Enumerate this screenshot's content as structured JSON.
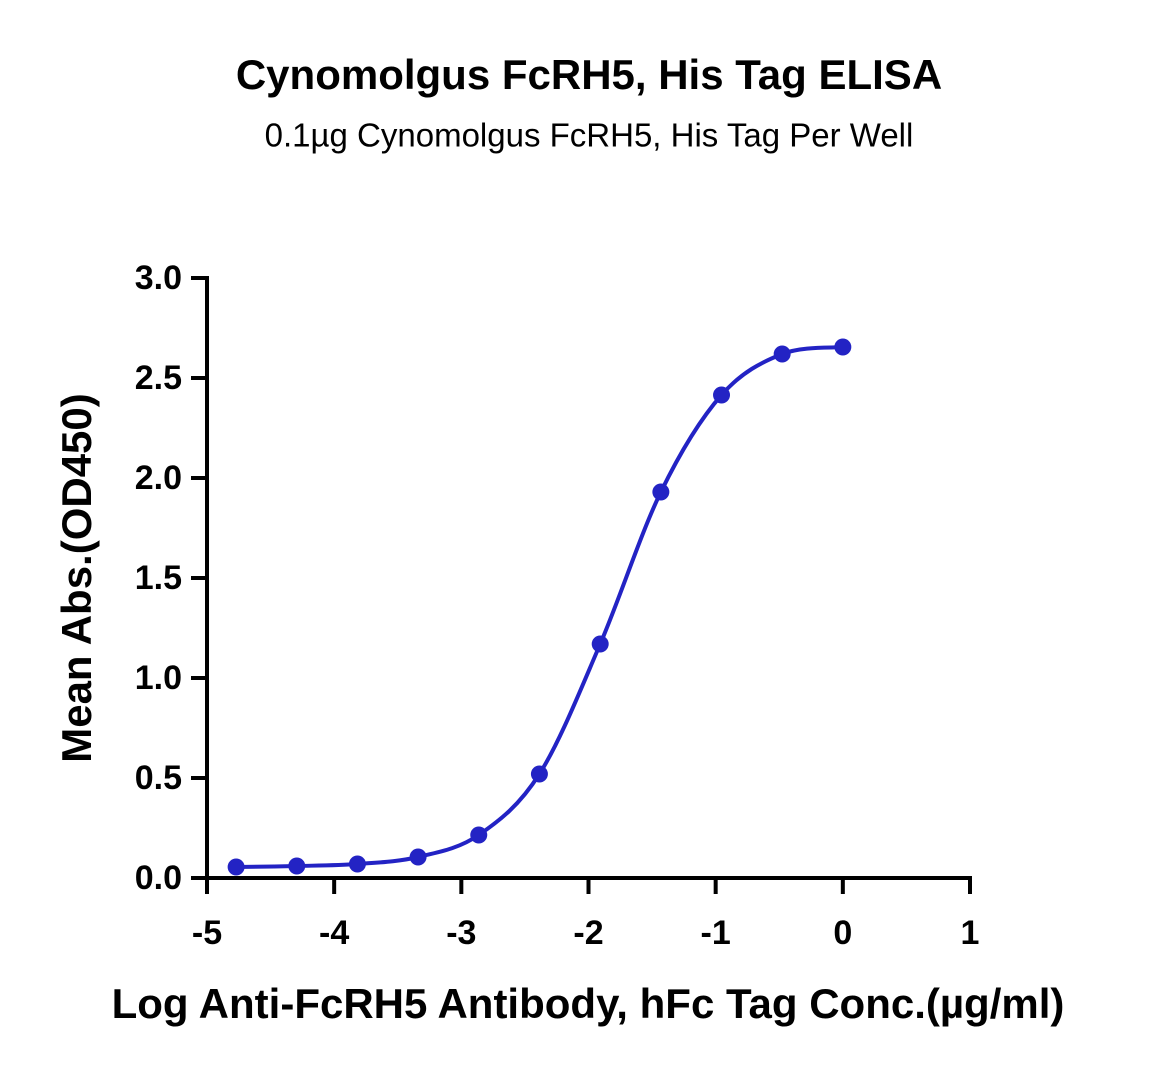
{
  "chart_data": {
    "type": "scatter",
    "title": "Cynomolgus FcRH5, His Tag ELISA",
    "subtitle": "0.1µg Cynomolgus FcRH5, His Tag Per Well",
    "x_label": "Log Anti-FcRH5 Antibody, hFc Tag Conc.(µg/ml)",
    "y_label": "Mean Abs.(OD450)",
    "x": [
      -4.771,
      -4.294,
      -3.817,
      -3.34,
      -2.863,
      -2.386,
      -1.908,
      -1.431,
      -0.954,
      -0.477,
      0
    ],
    "series": [
      {
        "name": "Cynomolgus FcRH5, His Tag",
        "color": "#2323c4",
        "values": [
          0.055,
          0.06,
          0.07,
          0.105,
          0.215,
          0.52,
          1.17,
          1.93,
          2.415,
          2.62,
          2.655
        ]
      }
    ],
    "xlim": [
      -5,
      1
    ],
    "xticks": [
      -5,
      -4,
      -3,
      -2,
      -1,
      0,
      1
    ],
    "ylim": [
      0,
      3
    ],
    "yticks": [
      {
        "value": 0,
        "label": "0.0"
      },
      0.5,
      {
        "value": 1,
        "label": "1.0"
      },
      1.5,
      {
        "value": 2,
        "label": "2.0"
      },
      2.5,
      {
        "value": 3,
        "label": "3.0"
      }
    ],
    "grid": false
  }
}
